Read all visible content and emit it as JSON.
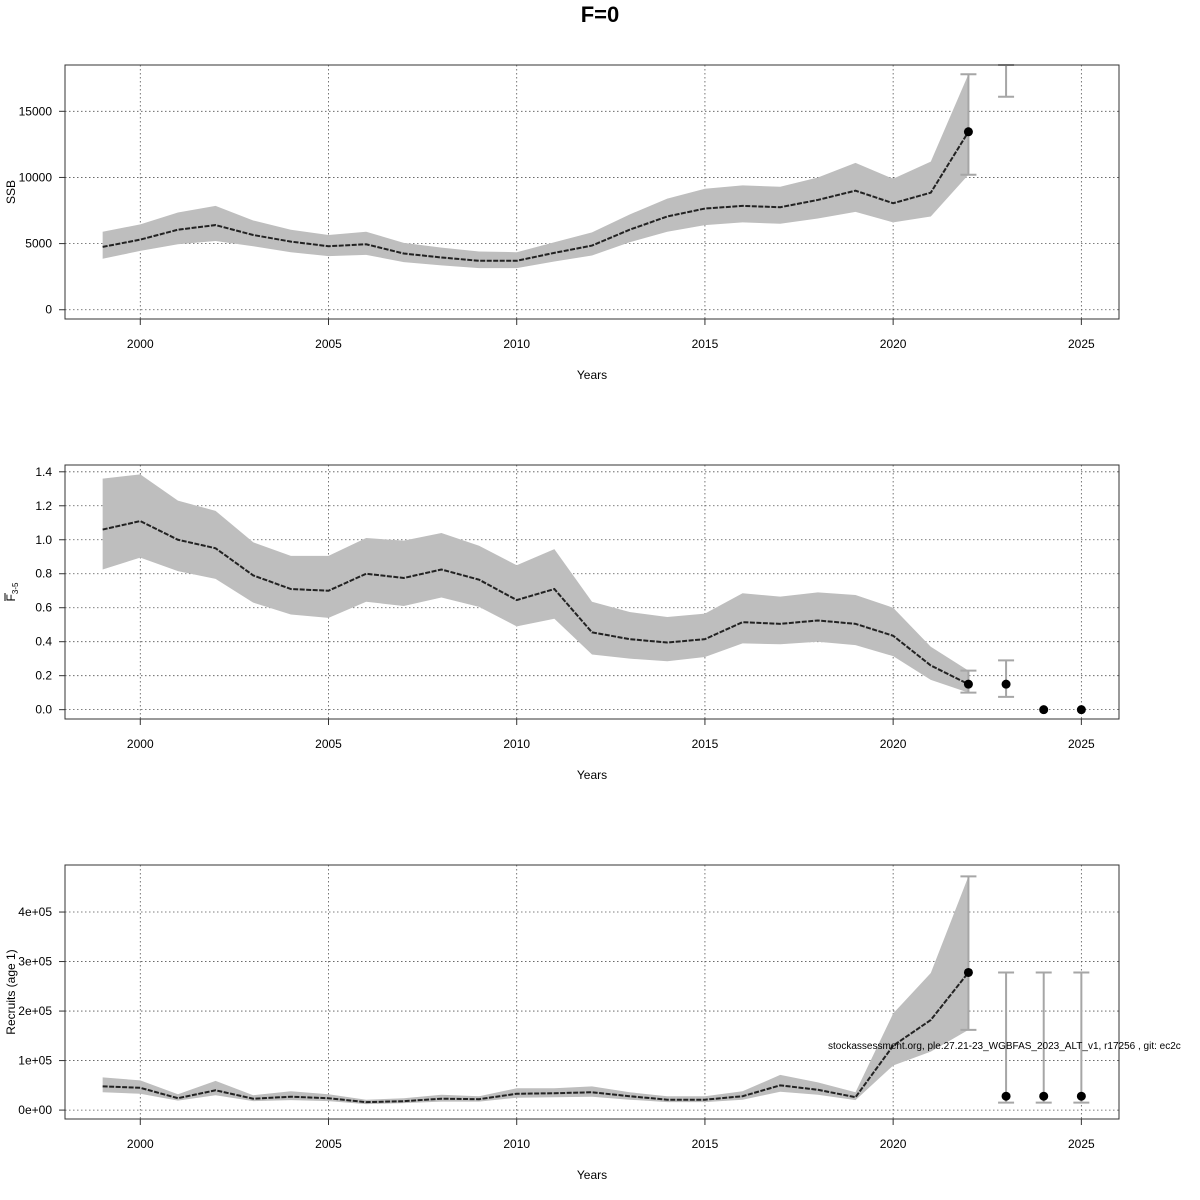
{
  "title": "F=0",
  "footnote": "stockassessment.org, ple.27.21-23_WGBFAS_2023_ALT_v1, r17256 , git: ec2c",
  "colors": {
    "band": "#bebebe",
    "line": "#222222",
    "grid": "#555555",
    "errorbar": "#a6a6a6",
    "point": "#000000"
  },
  "chart_data": [
    {
      "type": "line",
      "name": "ssb",
      "xlabel": "Years",
      "ylabel": "SSB",
      "xlim": [
        1998,
        2026
      ],
      "ylim": [
        -700,
        18500
      ],
      "xticks": [
        "2000",
        "2005",
        "2010",
        "2015",
        "2020",
        "2025"
      ],
      "xtick_values": [
        2000,
        2005,
        2010,
        2015,
        2020,
        2025
      ],
      "yticks": [
        "0",
        "5000",
        "10000",
        "15000"
      ],
      "ytick_values": [
        0,
        5000,
        10000,
        15000
      ],
      "grid": true,
      "x": [
        1999,
        2000,
        2001,
        2002,
        2003,
        2004,
        2005,
        2006,
        2007,
        2008,
        2009,
        2010,
        2011,
        2012,
        2013,
        2014,
        2015,
        2016,
        2017,
        2018,
        2019,
        2020,
        2021,
        2022
      ],
      "estimate": [
        4750,
        5300,
        6050,
        6400,
        5650,
        5150,
        4800,
        4950,
        4250,
        3950,
        3700,
        3700,
        4300,
        4850,
        6050,
        7050,
        7650,
        7850,
        7750,
        8300,
        9000,
        8050,
        8850,
        13450
      ],
      "lower": [
        3850,
        4450,
        4950,
        5200,
        4800,
        4350,
        4050,
        4150,
        3600,
        3350,
        3150,
        3150,
        3650,
        4100,
        5100,
        5900,
        6400,
        6600,
        6500,
        6900,
        7400,
        6600,
        7050,
        10200
      ],
      "upper": [
        5900,
        6450,
        7350,
        7850,
        6750,
        6050,
        5650,
        5900,
        5050,
        4700,
        4400,
        4350,
        5100,
        5850,
        7200,
        8400,
        9150,
        9400,
        9300,
        10000,
        11100,
        9900,
        11200,
        17800
      ],
      "points": [
        {
          "x": 2022,
          "y": 13450,
          "lower": 10200,
          "upper": 17800
        },
        {
          "x": 2023,
          "y": null,
          "lower": 16100,
          "upper": 18500
        }
      ]
    },
    {
      "type": "line",
      "name": "fbar",
      "xlabel": "Years",
      "ylabel": "F",
      "ylabel_subscript": "3-5",
      "xlim": [
        1998,
        2026
      ],
      "ylim": [
        -0.055,
        1.44
      ],
      "xticks": [
        "2000",
        "2005",
        "2010",
        "2015",
        "2020",
        "2025"
      ],
      "xtick_values": [
        2000,
        2005,
        2010,
        2015,
        2020,
        2025
      ],
      "yticks": [
        "0.0",
        "0.2",
        "0.4",
        "0.6",
        "0.8",
        "1.0",
        "1.2",
        "1.4"
      ],
      "ytick_values": [
        0,
        0.2,
        0.4,
        0.6,
        0.8,
        1.0,
        1.2,
        1.4
      ],
      "grid": true,
      "x": [
        1999,
        2000,
        2001,
        2002,
        2003,
        2004,
        2005,
        2006,
        2007,
        2008,
        2009,
        2010,
        2011,
        2012,
        2013,
        2014,
        2015,
        2016,
        2017,
        2018,
        2019,
        2020,
        2021,
        2022
      ],
      "estimate": [
        1.06,
        1.11,
        1.0,
        0.95,
        0.79,
        0.71,
        0.7,
        0.8,
        0.775,
        0.825,
        0.765,
        0.645,
        0.71,
        0.455,
        0.415,
        0.395,
        0.415,
        0.515,
        0.505,
        0.525,
        0.505,
        0.435,
        0.26,
        0.15
      ],
      "lower": [
        0.825,
        0.895,
        0.815,
        0.77,
        0.63,
        0.56,
        0.54,
        0.635,
        0.61,
        0.66,
        0.605,
        0.49,
        0.535,
        0.325,
        0.3,
        0.285,
        0.31,
        0.39,
        0.385,
        0.4,
        0.38,
        0.315,
        0.175,
        0.1
      ],
      "upper": [
        1.36,
        1.385,
        1.23,
        1.17,
        0.985,
        0.905,
        0.905,
        1.01,
        0.995,
        1.04,
        0.965,
        0.85,
        0.945,
        0.635,
        0.575,
        0.545,
        0.565,
        0.685,
        0.665,
        0.69,
        0.675,
        0.6,
        0.37,
        0.23
      ],
      "points": [
        {
          "x": 2022,
          "y": 0.15,
          "lower": 0.1,
          "upper": 0.23
        },
        {
          "x": 2023,
          "y": 0.15,
          "lower": 0.075,
          "upper": 0.29
        },
        {
          "x": 2024,
          "y": 0.0,
          "lower": 0.0,
          "upper": 0.0
        },
        {
          "x": 2025,
          "y": 0.0,
          "lower": 0.0,
          "upper": 0.0
        }
      ]
    },
    {
      "type": "line",
      "name": "recruits",
      "xlabel": "Years",
      "ylabel": "Recruits (age 1)",
      "xlim": [
        1998,
        2026
      ],
      "ylim": [
        -18000,
        495000
      ],
      "xticks": [
        "2000",
        "2005",
        "2010",
        "2015",
        "2020",
        "2025"
      ],
      "xtick_values": [
        2000,
        2005,
        2010,
        2015,
        2020,
        2025
      ],
      "yticks": [
        "0e+00",
        "1e+05",
        "2e+05",
        "3e+05",
        "4e+05"
      ],
      "ytick_values": [
        0,
        100000,
        200000,
        300000,
        400000
      ],
      "grid": true,
      "x": [
        1999,
        2000,
        2001,
        2002,
        2003,
        2004,
        2005,
        2006,
        2007,
        2008,
        2009,
        2010,
        2011,
        2012,
        2013,
        2014,
        2015,
        2016,
        2017,
        2018,
        2019,
        2020,
        2021,
        2022
      ],
      "estimate": [
        48000,
        45000,
        24000,
        40000,
        23000,
        27000,
        24000,
        16000,
        18000,
        23000,
        22000,
        33000,
        34000,
        36000,
        28000,
        21000,
        21000,
        28000,
        50000,
        41000,
        26000,
        130000,
        182000,
        278000
      ],
      "lower": [
        36000,
        33000,
        19000,
        30000,
        18000,
        20000,
        18000,
        12000,
        14000,
        17000,
        17000,
        25000,
        26000,
        27000,
        21000,
        16000,
        16000,
        21000,
        37000,
        31000,
        20000,
        90000,
        118000,
        162000
      ],
      "upper": [
        66000,
        60000,
        32000,
        59000,
        30000,
        38000,
        32000,
        21000,
        24000,
        31000,
        28000,
        44000,
        44000,
        48000,
        36000,
        28000,
        28000,
        38000,
        71000,
        56000,
        36000,
        195000,
        277000,
        472000
      ],
      "points": [
        {
          "x": 2022,
          "y": 278000,
          "lower": 162000,
          "upper": 472000
        },
        {
          "x": 2023,
          "y": 28000,
          "lower": 15000,
          "upper": 278000
        },
        {
          "x": 2024,
          "y": 28000,
          "lower": 15000,
          "upper": 278000
        },
        {
          "x": 2025,
          "y": 28000,
          "lower": 15000,
          "upper": 278000
        }
      ]
    }
  ]
}
